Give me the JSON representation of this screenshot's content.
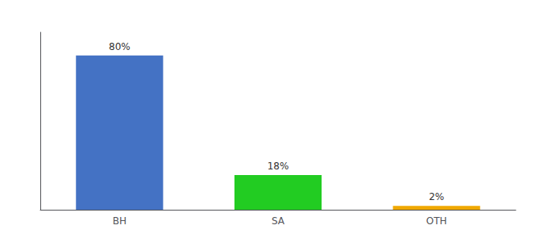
{
  "chart_data": {
    "type": "bar",
    "categories": [
      "BH",
      "SA",
      "OTH"
    ],
    "values": [
      80,
      18,
      2
    ],
    "value_labels": [
      "80%",
      "18%",
      "2%"
    ],
    "colors": [
      "#4472c4",
      "#22cc22",
      "#f0a800"
    ],
    "ylim": [
      0,
      92
    ],
    "yticks": [],
    "grid": false,
    "data_labels": true,
    "tick_labels": "x"
  }
}
